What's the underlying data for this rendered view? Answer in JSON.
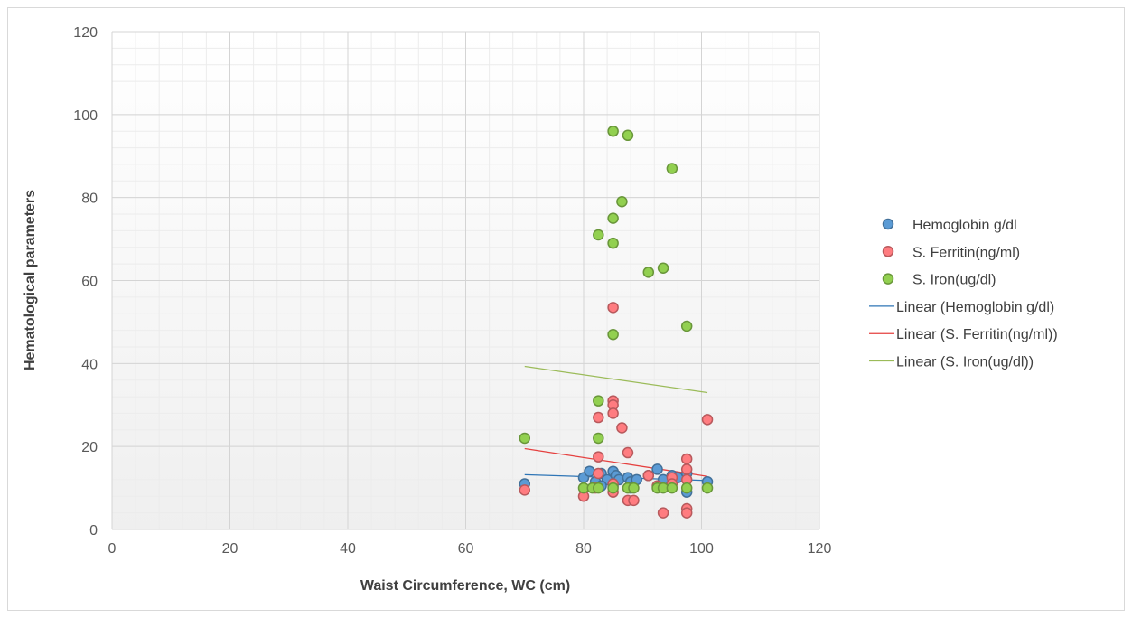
{
  "chart_data": {
    "type": "scatter",
    "title": "",
    "xlabel": "Waist Circumference, WC (cm)",
    "ylabel": "Hematological parameters",
    "xlim": [
      0,
      120
    ],
    "ylim": [
      0,
      120
    ],
    "x_ticks": [
      0,
      20,
      40,
      60,
      80,
      100,
      120
    ],
    "y_ticks": [
      0,
      20,
      40,
      60,
      80,
      100,
      120
    ],
    "x_tick_labels": [
      "0",
      "20",
      "40",
      "60",
      "80",
      "100",
      "120"
    ],
    "y_tick_labels": [
      "0",
      "20",
      "40",
      "60",
      "80",
      "100",
      "120"
    ],
    "grid": true,
    "minor_grid": true,
    "legend_position": "right",
    "series": [
      {
        "name": "Hemoglobin g/dl",
        "color": "#5b9bd5",
        "points": [
          [
            70,
            11
          ],
          [
            80,
            12.5
          ],
          [
            81,
            14
          ],
          [
            82,
            11.5
          ],
          [
            83,
            13.5
          ],
          [
            84,
            12
          ],
          [
            85,
            14
          ],
          [
            85.5,
            13
          ],
          [
            86,
            12
          ],
          [
            87.5,
            12.5
          ],
          [
            88,
            11.5
          ],
          [
            89,
            12
          ],
          [
            91,
            13
          ],
          [
            92.5,
            14.5
          ],
          [
            93.5,
            12
          ],
          [
            95,
            13
          ],
          [
            96,
            12.5
          ],
          [
            97.5,
            13.5
          ],
          [
            97.5,
            9
          ],
          [
            101,
            11.5
          ],
          [
            83,
            10.5
          ],
          [
            85,
            10.5
          ],
          [
            88,
            10
          ]
        ]
      },
      {
        "name": "S. Ferritin(ng/ml)",
        "color": "#ff7c80",
        "points": [
          [
            70,
            9.5
          ],
          [
            80,
            8
          ],
          [
            82,
            10
          ],
          [
            82.5,
            13.5
          ],
          [
            82.5,
            17.5
          ],
          [
            82.5,
            27
          ],
          [
            85,
            53.5
          ],
          [
            85,
            31
          ],
          [
            85,
            30
          ],
          [
            85,
            28
          ],
          [
            85,
            11
          ],
          [
            85,
            9
          ],
          [
            86.5,
            24.5
          ],
          [
            87.5,
            18.5
          ],
          [
            87.5,
            7
          ],
          [
            88.5,
            7
          ],
          [
            91,
            13
          ],
          [
            92.5,
            10.5
          ],
          [
            93.5,
            4
          ],
          [
            95,
            12.5
          ],
          [
            95,
            11
          ],
          [
            97.5,
            17
          ],
          [
            97.5,
            14.5
          ],
          [
            97.5,
            12
          ],
          [
            97.5,
            5
          ],
          [
            97.5,
            4
          ],
          [
            101,
            26.5
          ]
        ]
      },
      {
        "name": "S. Iron(ug/dl)",
        "color": "#92d050",
        "points": [
          [
            70,
            22
          ],
          [
            80,
            10
          ],
          [
            81.5,
            10
          ],
          [
            82.5,
            71
          ],
          [
            82.5,
            31
          ],
          [
            82.5,
            22
          ],
          [
            82.5,
            10
          ],
          [
            85,
            96
          ],
          [
            85,
            75
          ],
          [
            85,
            69
          ],
          [
            85,
            47
          ],
          [
            85,
            10
          ],
          [
            86.5,
            79
          ],
          [
            87.5,
            95
          ],
          [
            87.5,
            10
          ],
          [
            88.5,
            10
          ],
          [
            91,
            62
          ],
          [
            92.5,
            10
          ],
          [
            93.5,
            63
          ],
          [
            93.5,
            10
          ],
          [
            95,
            87
          ],
          [
            95,
            10
          ],
          [
            97.5,
            49
          ],
          [
            97.5,
            10
          ],
          [
            101,
            10
          ]
        ]
      },
      {
        "name": "Linear (Hemoglobin g/dl)",
        "type": "line",
        "color": "#2e75b6",
        "points": [
          [
            70,
            13.2
          ],
          [
            101,
            11.8
          ]
        ]
      },
      {
        "name": "Linear (S. Ferritin(ng/ml))",
        "type": "line",
        "color": "#e5403f",
        "points": [
          [
            70,
            19.5
          ],
          [
            101,
            12.8
          ]
        ]
      },
      {
        "name": "Linear (S. Iron(ug/dl))",
        "type": "line",
        "color": "#9bbb59",
        "points": [
          [
            70,
            39.3
          ],
          [
            101,
            33
          ]
        ]
      }
    ]
  }
}
